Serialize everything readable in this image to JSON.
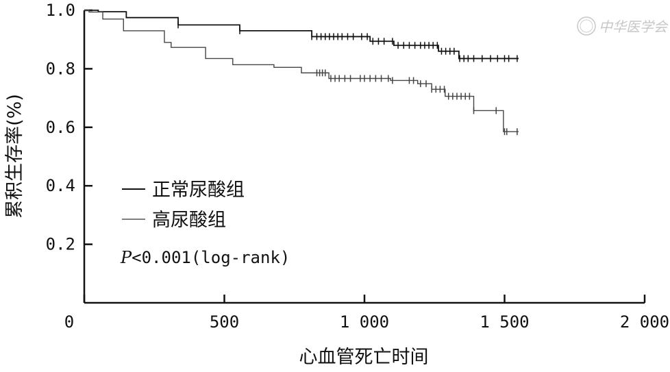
{
  "chart_data": {
    "type": "line",
    "subtype": "kaplan-meier",
    "xlabel": "心血管死亡时间",
    "ylabel": "累积生存率(%)",
    "xlim": [
      0,
      2000
    ],
    "ylim": [
      0,
      1.0
    ],
    "x_ticks": [
      0,
      500,
      1000,
      1500,
      2000
    ],
    "x_tick_labels": [
      "0",
      "500",
      "1 000",
      "1 500",
      "2 000"
    ],
    "y_ticks": [
      0.2,
      0.4,
      0.6,
      0.8,
      1.0
    ],
    "y_tick_labels": [
      "0.2",
      "0.4",
      "0.6",
      "0.8",
      "1.0"
    ],
    "grid": false,
    "legend_position": "bottom-left",
    "annotation": {
      "italic": "P",
      "text": "<0.001(log-rank)"
    },
    "series": [
      {
        "name": "正常尿酸组",
        "color": "#111111",
        "points": [
          [
            0,
            1.0
          ],
          [
            50,
            0.995
          ],
          [
            150,
            0.975
          ],
          [
            335,
            0.95
          ],
          [
            555,
            0.93
          ],
          [
            812,
            0.91
          ],
          [
            1020,
            0.894
          ],
          [
            1105,
            0.88
          ],
          [
            1264,
            0.86
          ],
          [
            1337,
            0.835
          ],
          [
            1550,
            0.835
          ]
        ],
        "censored": [
          335,
          555,
          812,
          830,
          845,
          860,
          875,
          890,
          905,
          920,
          940,
          960,
          990,
          1010,
          1030,
          1050,
          1070,
          1100,
          1120,
          1140,
          1160,
          1180,
          1200,
          1215,
          1230,
          1245,
          1260,
          1275,
          1290,
          1305,
          1320,
          1340,
          1355,
          1370,
          1390,
          1420,
          1450,
          1475,
          1500,
          1515,
          1545
        ]
      },
      {
        "name": "高尿酸组",
        "color": "#444444",
        "points": [
          [
            0,
            1.0
          ],
          [
            17,
            0.994
          ],
          [
            66,
            0.97
          ],
          [
            140,
            0.93
          ],
          [
            286,
            0.89
          ],
          [
            310,
            0.873
          ],
          [
            433,
            0.835
          ],
          [
            530,
            0.814
          ],
          [
            677,
            0.805
          ],
          [
            775,
            0.786
          ],
          [
            873,
            0.767
          ],
          [
            1093,
            0.76
          ],
          [
            1190,
            0.749
          ],
          [
            1240,
            0.73
          ],
          [
            1288,
            0.706
          ],
          [
            1390,
            0.657
          ],
          [
            1496,
            0.585
          ],
          [
            1550,
            0.585
          ]
        ],
        "censored": [
          830,
          840,
          850,
          860,
          880,
          895,
          910,
          930,
          950,
          985,
          1000,
          1020,
          1040,
          1060,
          1085,
          1100,
          1160,
          1175,
          1200,
          1220,
          1240,
          1255,
          1270,
          1285,
          1300,
          1315,
          1330,
          1345,
          1360,
          1375,
          1390,
          1470,
          1500,
          1508,
          1545
        ]
      }
    ]
  },
  "watermark": {
    "logo_text": "中华医学会"
  }
}
